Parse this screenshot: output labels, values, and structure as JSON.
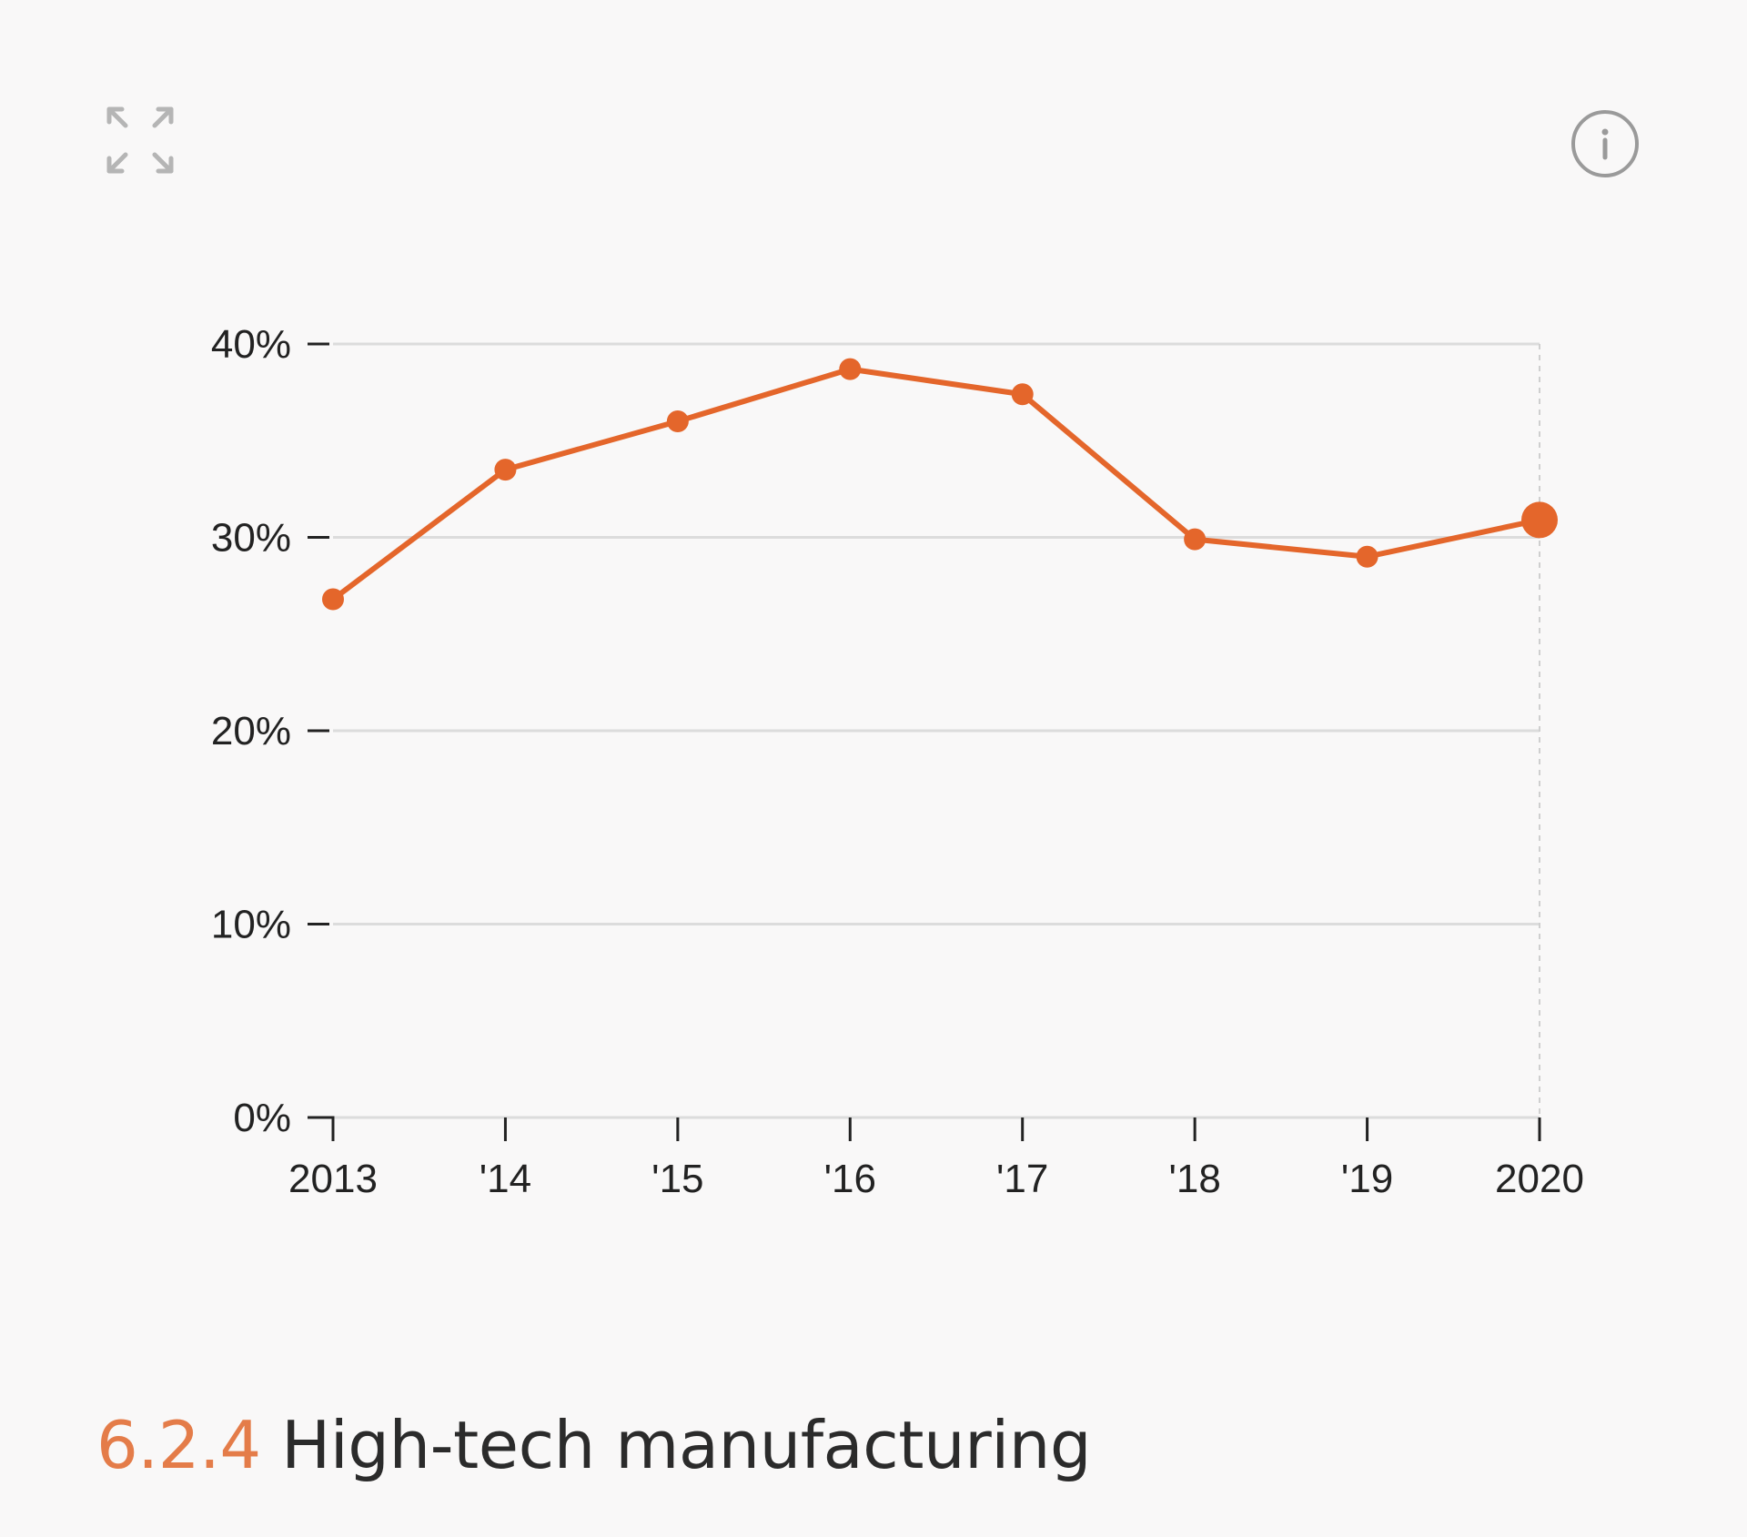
{
  "colors": {
    "accent": "#e4662b",
    "section_number": "#e47c49",
    "text": "#2b2b2b",
    "gridline": "#dcdcdc",
    "background": "#f9f8f8"
  },
  "icons": {
    "expand": "expand-arrows-icon",
    "info": "info-circle-icon"
  },
  "section": {
    "number": "6.2.4",
    "title": "High-tech manufacturing"
  },
  "chart_data": {
    "type": "line",
    "title": "High-tech manufacturing",
    "xlabel": "",
    "ylabel": "",
    "x_tick_labels": [
      "2013",
      "'14",
      "'15",
      "'16",
      "'17",
      "'18",
      "'19",
      "2020"
    ],
    "y_tick_labels": [
      "0%",
      "10%",
      "20%",
      "30%",
      "40%"
    ],
    "y_ticks": [
      0,
      10,
      20,
      30,
      40
    ],
    "ylim": [
      0,
      40
    ],
    "grid": true,
    "series": [
      {
        "name": "High-tech manufacturing",
        "x": [
          2013,
          2014,
          2015,
          2016,
          2017,
          2018,
          2019,
          2020
        ],
        "values": [
          26.8,
          33.5,
          36,
          38.7,
          37.4,
          29.9,
          29,
          30.9
        ],
        "unit": "%",
        "highlight_last": true
      }
    ]
  }
}
